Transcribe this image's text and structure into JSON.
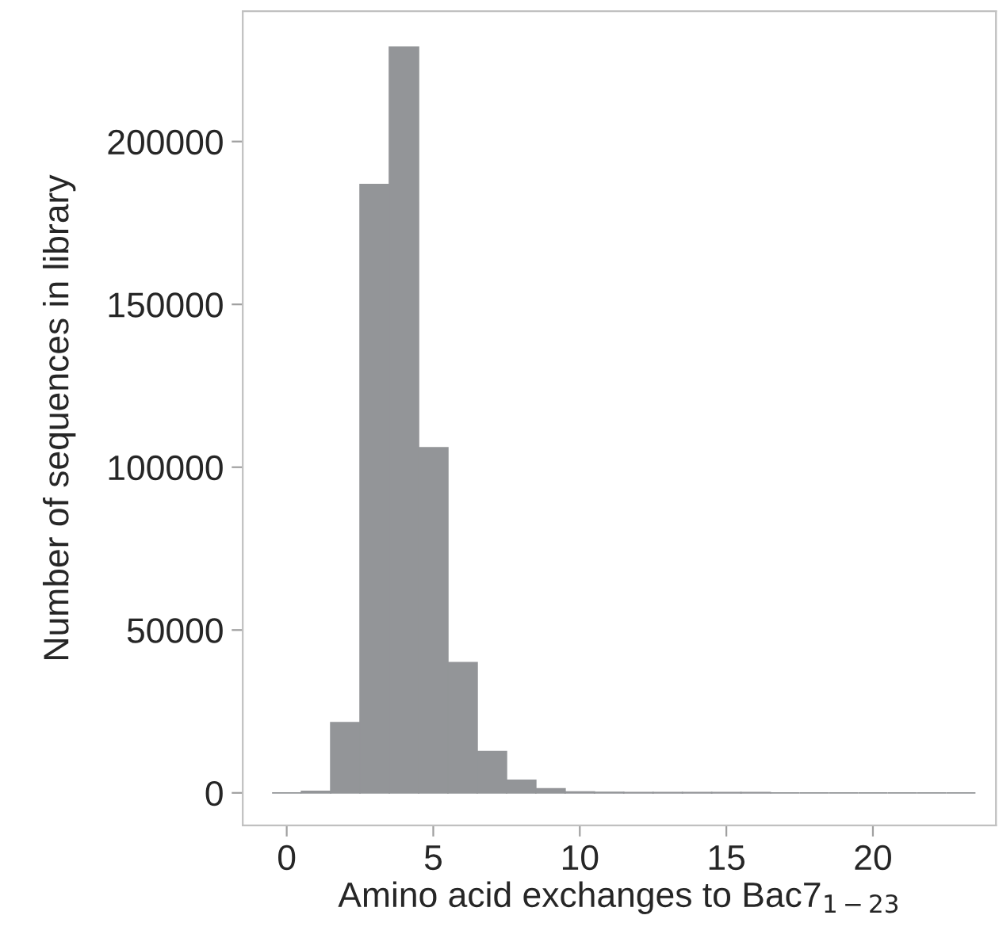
{
  "chart_data": {
    "type": "histogram",
    "xlabel": "Amino acid exchanges to Bac7$_{1−23}$",
    "ylabel": "Number of sequences in library",
    "bins": [
      -0.5,
      0.5,
      1.5,
      2.5,
      3.5,
      4.5,
      5.5,
      6.5,
      7.5,
      8.5,
      9.5,
      10.5,
      11.5,
      12.5,
      13.5,
      14.5,
      15.5,
      16.5,
      17.5,
      18.5,
      19.5,
      20.5,
      21.5,
      22.5,
      23.5
    ],
    "values": [
      0,
      500,
      21600,
      186800,
      229000,
      106000,
      40000,
      12700,
      3900,
      1300,
      300,
      200,
      100,
      100,
      100,
      100,
      100,
      0,
      0,
      0,
      0,
      0,
      0,
      0
    ],
    "color": "#939598",
    "xlim": [
      -1.5,
      24.2
    ],
    "ylim": [
      -10000,
      240000
    ],
    "xticks": [
      0,
      5,
      10,
      15,
      20
    ],
    "yticks": [
      0,
      50000,
      100000,
      150000,
      200000
    ],
    "grid": false
  }
}
